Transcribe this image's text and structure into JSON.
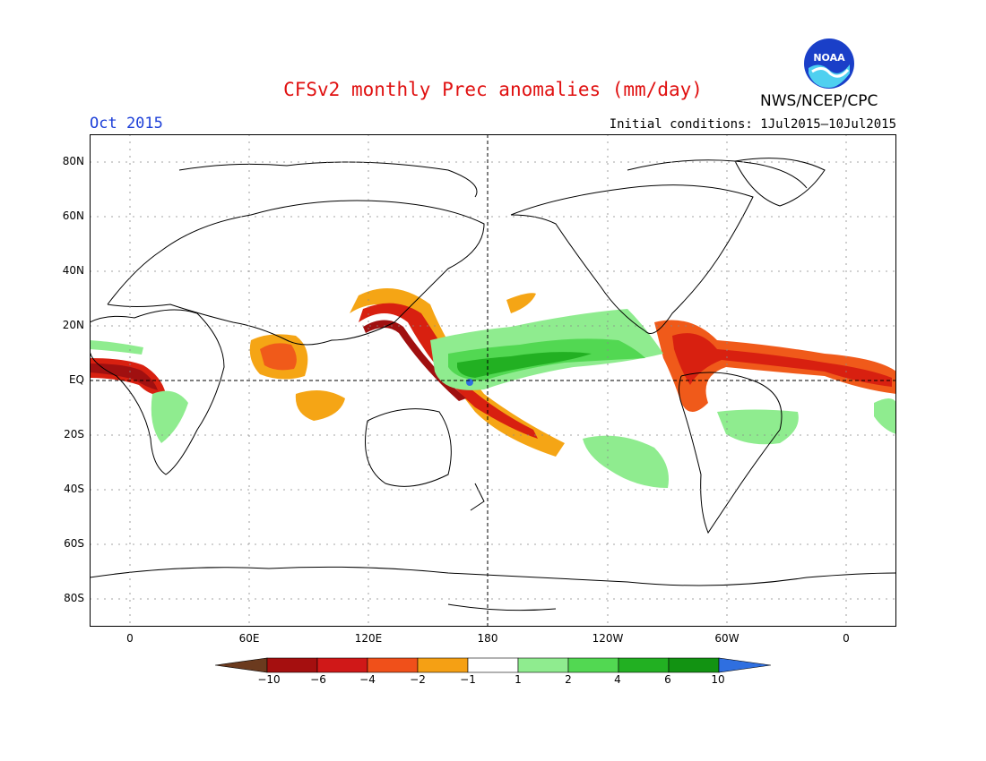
{
  "title": "CFSv2 monthly Prec anomalies (mm/day)",
  "valid_month": "Oct 2015",
  "initial_conditions": "Initial conditions: 1Jul2015–10Jul2015",
  "agency": "NWS/NCEP/CPC",
  "logo_text": "NOAA",
  "lat_labels": [
    "80N",
    "60N",
    "40N",
    "20N",
    "EQ",
    "20S",
    "40S",
    "60S",
    "80S"
  ],
  "lon_labels": [
    "0",
    "60E",
    "120E",
    "180",
    "120W",
    "60W",
    "0"
  ],
  "colorbar": {
    "labels": [
      "−10",
      "−6",
      "−4",
      "−2",
      "−1",
      "1",
      "2",
      "4",
      "6",
      "10"
    ],
    "colors": [
      "#6b3a1e",
      "#a50f0f",
      "#d01818",
      "#f0501a",
      "#f5a014",
      "#ffffff",
      "#8fec8f",
      "#52d852",
      "#22b022",
      "#129312",
      "#2f6fe0"
    ]
  },
  "anomaly_colors": {
    "dry_strong": "#a01010",
    "dry": "#d82010",
    "dry_mod": "#f05a1a",
    "dry_weak": "#f5a515",
    "wet_weak": "#8fec8f",
    "wet": "#52d852",
    "wet_strong": "#22b022"
  }
}
